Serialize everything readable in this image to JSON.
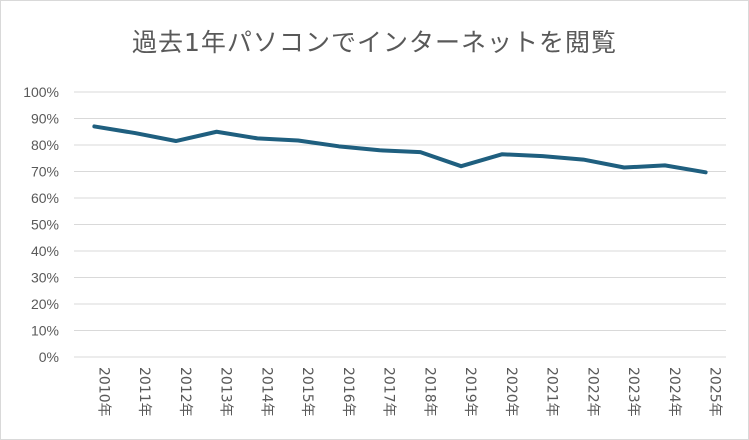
{
  "chart_data": {
    "type": "line",
    "title": "過去1年パソコンでインターネットを閲覧",
    "xlabel": "",
    "ylabel": "",
    "categories": [
      "2010年",
      "2011年",
      "2012年",
      "2013年",
      "2014年",
      "2015年",
      "2016年",
      "2017年",
      "2018年",
      "2019年",
      "2020年",
      "2021年",
      "2022年",
      "2023年",
      "2024年",
      "2025年"
    ],
    "series": [
      {
        "values": [
          0.87,
          0.845,
          0.815,
          0.85,
          0.825,
          0.817,
          0.795,
          0.78,
          0.773,
          0.72,
          0.765,
          0.758,
          0.745,
          0.715,
          0.723,
          0.697
        ],
        "color": "#1f5f7f"
      }
    ],
    "ylim": [
      0,
      1
    ],
    "y_ticks": [
      "0%",
      "10%",
      "20%",
      "30%",
      "40%",
      "50%",
      "60%",
      "70%",
      "80%",
      "90%",
      "100%"
    ],
    "grid": true,
    "legend": "none"
  }
}
